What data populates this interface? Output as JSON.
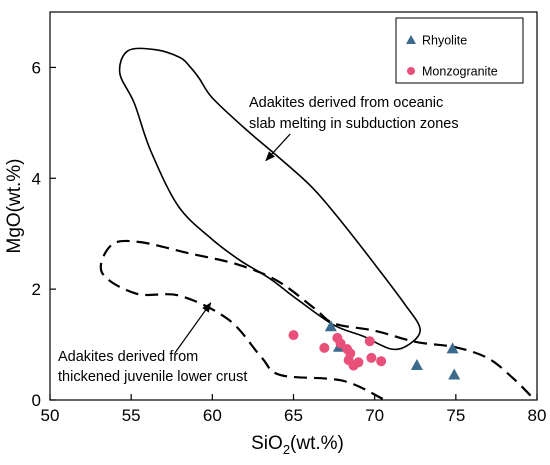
{
  "chart_data": {
    "type": "scatter",
    "xlabel": {
      "main": "SiO",
      "sub": "2",
      "rest": "(wt.%)"
    },
    "ylabel": "MgO(wt.%)",
    "xlim": [
      50,
      80
    ],
    "ylim": [
      0,
      7
    ],
    "xticks": [
      "50",
      "55",
      "60",
      "65",
      "70",
      "75",
      "80"
    ],
    "yticks": [
      "0",
      "2",
      "4",
      "6"
    ],
    "grid": false,
    "legend": {
      "position": "top-right",
      "entries": [
        {
          "label": "Rhyolite",
          "marker": "triangle",
          "color": "#3a6a8c"
        },
        {
          "label": "Monzogranite",
          "marker": "circle",
          "color": "#e8507a"
        }
      ]
    },
    "series": [
      {
        "name": "Rhyolite",
        "marker": "triangle",
        "color": "#3a6a8c",
        "points": [
          [
            67.3,
            1.32
          ],
          [
            67.8,
            0.95
          ],
          [
            72.6,
            0.62
          ],
          [
            74.8,
            0.92
          ],
          [
            74.9,
            0.45
          ]
        ]
      },
      {
        "name": "Monzogranite",
        "marker": "circle",
        "color": "#e8507a",
        "points": [
          [
            65.0,
            1.17
          ],
          [
            66.9,
            0.94
          ],
          [
            67.7,
            1.12
          ],
          [
            67.9,
            1.02
          ],
          [
            68.3,
            0.92
          ],
          [
            68.4,
            0.72
          ],
          [
            68.5,
            0.84
          ],
          [
            68.7,
            0.62
          ],
          [
            69.0,
            0.68
          ],
          [
            69.7,
            1.06
          ],
          [
            69.8,
            0.76
          ],
          [
            70.4,
            0.7
          ]
        ]
      }
    ],
    "regions": [
      {
        "label": "Adakites derived from oceanic slab melting in subduction zones",
        "style": "solid",
        "polygon": [
          [
            54.8,
            6.3
          ],
          [
            56.5,
            6.32
          ],
          [
            58.0,
            6.18
          ],
          [
            58.6,
            6.02
          ],
          [
            59.2,
            5.8
          ],
          [
            60.0,
            5.45
          ],
          [
            62.0,
            4.9
          ],
          [
            64.2,
            4.35
          ],
          [
            66.2,
            3.82
          ],
          [
            68.0,
            3.2
          ],
          [
            70.0,
            2.45
          ],
          [
            71.8,
            1.75
          ],
          [
            72.8,
            1.28
          ],
          [
            72.1,
            1.0
          ],
          [
            71.0,
            0.92
          ],
          [
            69.3,
            1.15
          ],
          [
            67.5,
            1.35
          ],
          [
            65.3,
            1.8
          ],
          [
            63.5,
            2.2
          ],
          [
            61.7,
            2.52
          ],
          [
            59.9,
            2.92
          ],
          [
            57.9,
            3.5
          ],
          [
            56.2,
            4.5
          ],
          [
            55.2,
            5.35
          ],
          [
            54.3,
            5.9
          ]
        ]
      },
      {
        "label": "Adakites derived from thickened juvenile lower crust",
        "style": "dashed",
        "path": [
          [
            70.5,
            0.02
          ],
          [
            68.0,
            0.35
          ],
          [
            64.2,
            0.45
          ],
          [
            63.0,
            0.78
          ],
          [
            61.0,
            1.45
          ],
          [
            58.0,
            1.88
          ],
          [
            55.3,
            1.92
          ],
          [
            53.2,
            2.3
          ],
          [
            53.8,
            2.8
          ],
          [
            55.5,
            2.85
          ],
          [
            58.5,
            2.65
          ],
          [
            61.5,
            2.45
          ],
          [
            64.0,
            2.15
          ],
          [
            66.3,
            1.65
          ],
          [
            67.5,
            1.38
          ],
          [
            70.0,
            1.25
          ],
          [
            72.5,
            1.05
          ],
          [
            75.0,
            0.95
          ],
          [
            77.0,
            0.75
          ],
          [
            78.5,
            0.4
          ],
          [
            79.7,
            0.05
          ]
        ]
      }
    ],
    "annotations": [
      {
        "lines": [
          "Adakites derived from oceanic",
          "slab melting in subduction zones"
        ],
        "arrow_from": [
          64.8,
          4.8
        ],
        "arrow_to": [
          63.3,
          4.32
        ]
      },
      {
        "lines": [
          "Adakites derived from",
          "thickened juvenile lower crust"
        ],
        "arrow_from": [
          57.7,
          0.85
        ],
        "arrow_to": [
          59.9,
          1.75
        ]
      }
    ]
  }
}
